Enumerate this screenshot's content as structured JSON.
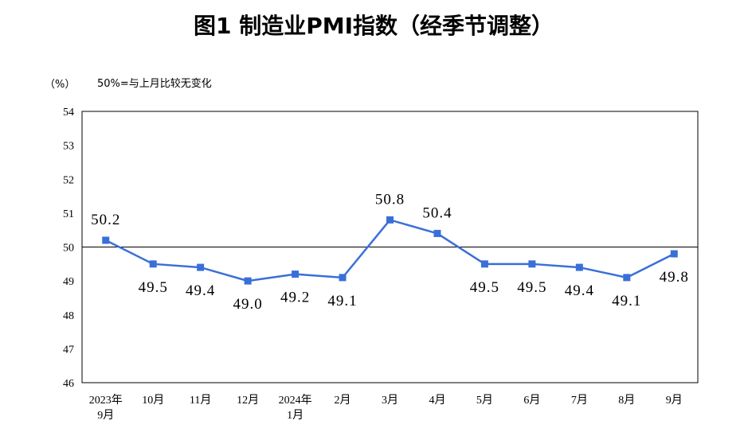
{
  "chart_data": {
    "type": "line",
    "title": "图1  制造业PMI指数（经季节调整）",
    "y_unit": "（%）",
    "annotation": "50%=与上月比较无变化",
    "ylim": [
      46,
      54
    ],
    "y_ticks": [
      "46",
      "47",
      "48",
      "49",
      "50",
      "51",
      "52",
      "53",
      "54"
    ],
    "reference_line": 50,
    "grid": false,
    "categories": [
      [
        "2023年",
        "9月"
      ],
      [
        "10月"
      ],
      [
        "11月"
      ],
      [
        "12月"
      ],
      [
        "2024年",
        "1月"
      ],
      [
        "2月"
      ],
      [
        "3月"
      ],
      [
        "4月"
      ],
      [
        "5月"
      ],
      [
        "6月"
      ],
      [
        "7月"
      ],
      [
        "8月"
      ],
      [
        "9月"
      ]
    ],
    "values": [
      50.2,
      49.5,
      49.4,
      49.0,
      49.2,
      49.1,
      50.8,
      50.4,
      49.5,
      49.5,
      49.4,
      49.1,
      49.8
    ],
    "data_labels": [
      "50.2",
      "49.5",
      "49.4",
      "49.0",
      "49.2",
      "49.1",
      "50.8",
      "50.4",
      "49.5",
      "49.5",
      "49.4",
      "49.1",
      "49.8"
    ],
    "colors": {
      "line": "#3a6fd8",
      "axis": "#000000"
    }
  }
}
